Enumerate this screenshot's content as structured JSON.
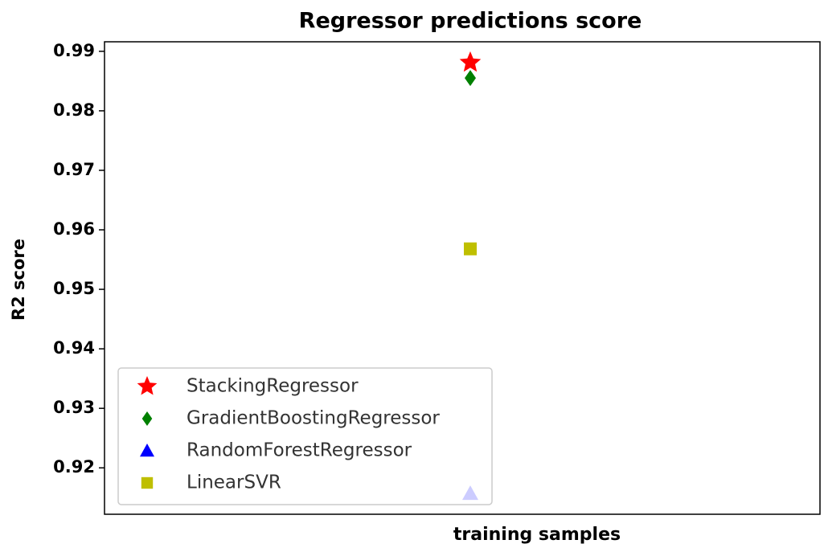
{
  "chart_data": {
    "type": "scatter",
    "title": "Regressor predictions score",
    "x_label": "training samples",
    "y_label": "R2 score",
    "categories": [
      null
    ],
    "series": [
      {
        "name": "StackingRegressor",
        "color": "#ff0000",
        "marker": "star",
        "values": [
          0.9881
        ]
      },
      {
        "name": "GradientBoostingRegressor",
        "color": "#008000",
        "marker": "diamond",
        "values": [
          0.9855
        ]
      },
      {
        "name": "RandomForestRegressor",
        "color": "#0000ff",
        "marker": "triangle",
        "values": [
          0.9157
        ]
      },
      {
        "name": "LinearSVR",
        "color": "#bfbf00",
        "marker": "square",
        "values": [
          0.9568
        ]
      }
    ],
    "ylim": [
      0.9122,
      0.9916
    ],
    "yticks": [
      0.92,
      0.93,
      0.94,
      0.95,
      0.96,
      0.97,
      0.98,
      0.99
    ],
    "legend": "lower left"
  }
}
